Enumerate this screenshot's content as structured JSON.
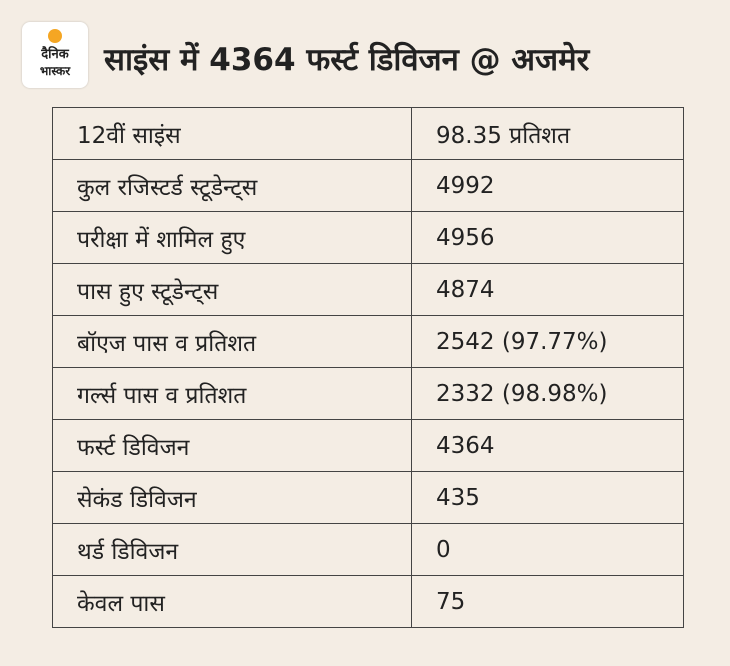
{
  "header": {
    "logo": [
      "दैनिक",
      "भास्कर"
    ],
    "title": "साइंस में 4364 फर्स्ट डिविजन @ अजमेर"
  },
  "table": {
    "rows": [
      [
        "12वीं साइंस",
        "98.35 प्रतिशत"
      ],
      [
        "कुल रजिस्टर्ड स्टूडेन्ट्स",
        "4992"
      ],
      [
        "परीक्षा में शामिल हुए",
        "4956"
      ],
      [
        "पास हुए स्टूडेन्ट्स",
        "4874"
      ],
      [
        "बॉएज पास व प्रतिशत",
        "2542 (97.77%)"
      ],
      [
        "गर्ल्स पास व प्रतिशत",
        "2332 (98.98%)"
      ],
      [
        "फर्स्ट डिविजन",
        "4364"
      ],
      [
        "सेकंड डिविजन",
        "435"
      ],
      [
        "थर्ड डिविजन",
        "0"
      ],
      [
        "केवल पास",
        "75"
      ]
    ]
  }
}
